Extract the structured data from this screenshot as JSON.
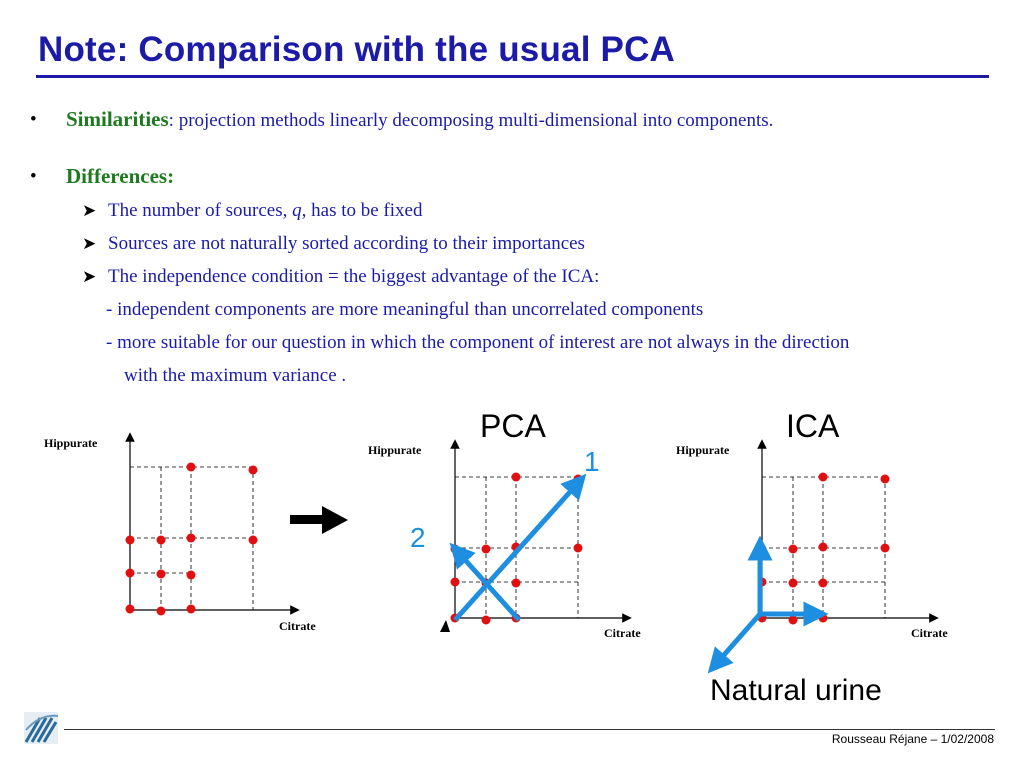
{
  "title": "Note: Comparison with the usual PCA",
  "similarities": {
    "bullet": "•",
    "label": "Similarities",
    "colon": ":",
    "text": " projection methods linearly decomposing multi-dimensional into components."
  },
  "differences": {
    "bullet": "•",
    "label": "Differences:",
    "items": [
      {
        "pre": "The number of sources, ",
        "italic": "q",
        "post": ", has to be fixed"
      },
      {
        "text": "Sources are not naturally sorted according to their importances"
      },
      {
        "text": "The independence condition = the biggest advantage of the ICA:"
      }
    ],
    "sub": [
      "-  independent components are more meaningful than uncorrelated components",
      "-  more suitable for our question in which the component of interest are not always in the direction",
      "with the maximum variance ."
    ]
  },
  "plots": {
    "y_label": "Hippurate",
    "x_label": "Citrate",
    "pca_title": "PCA",
    "ica_title": "ICA",
    "pc1": "1",
    "pc2": "2",
    "natural_urine": "Natural urine"
  },
  "footer": "Rousseau Réjane – 1/02/2008",
  "colors": {
    "title": "#1b1ba8",
    "green": "#1f7a1f",
    "point": "#e01010",
    "arrow": "#1e8fe0"
  }
}
